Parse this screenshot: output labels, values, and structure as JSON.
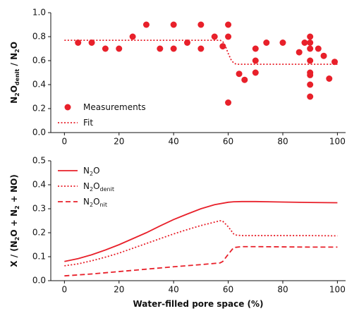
{
  "chart_data": [
    {
      "type": "scatter",
      "ylabel": [
        {
          "text": "N"
        },
        {
          "text": "2",
          "sub": true
        },
        {
          "text": "O"
        },
        {
          "text": "denit",
          "sub": true
        },
        {
          "text": " / N"
        },
        {
          "text": "2",
          "sub": true
        },
        {
          "text": "O"
        }
      ],
      "xlim": [
        -5,
        103
      ],
      "xticks": [
        0,
        20,
        40,
        60,
        80,
        100
      ],
      "ylim": [
        0,
        1
      ],
      "yticks": [
        {
          "value": 0,
          "label": "0.0"
        },
        0.2,
        0.4,
        0.6,
        0.8,
        {
          "value": 1,
          "label": "1.0"
        }
      ],
      "legend": "lower left",
      "series": [
        {
          "name": [
            {
              "text": "Measurements"
            }
          ],
          "color": "#e8202a",
          "style": "dot",
          "x": [
            5,
            10,
            15,
            20,
            25,
            30,
            35,
            40,
            40,
            45,
            50,
            50,
            55,
            58,
            60,
            60,
            60,
            64,
            66,
            70,
            70,
            70,
            74,
            80,
            86,
            88,
            90,
            90,
            90,
            90,
            90,
            90,
            90,
            90,
            93,
            95,
            97,
            99
          ],
          "values": [
            0.75,
            0.75,
            0.7,
            0.7,
            0.8,
            0.9,
            0.7,
            0.9,
            0.7,
            0.75,
            0.9,
            0.7,
            0.8,
            0.72,
            0.9,
            0.8,
            0.25,
            0.49,
            0.44,
            0.7,
            0.6,
            0.5,
            0.75,
            0.75,
            0.67,
            0.75,
            0.8,
            0.75,
            0.7,
            0.6,
            0.5,
            0.48,
            0.4,
            0.3,
            0.7,
            0.64,
            0.45,
            0.59
          ]
        },
        {
          "name": [
            {
              "text": "Fit"
            }
          ],
          "color": "#e8202a",
          "style": "dotted",
          "x": [
            0,
            57,
            58,
            59,
            60,
            61,
            62,
            63,
            100
          ],
          "values": [
            0.77,
            0.77,
            0.76,
            0.72,
            0.66,
            0.61,
            0.58,
            0.57,
            0.57
          ]
        }
      ]
    },
    {
      "type": "line",
      "ylabel": [
        {
          "text": "X / (N"
        },
        {
          "text": "2",
          "sub": true
        },
        {
          "text": "O + N"
        },
        {
          "text": "2",
          "sub": true
        },
        {
          "text": " + NO)"
        }
      ],
      "xlabel": [
        {
          "text": "Water-filled pore space (%)"
        }
      ],
      "xlim": [
        -5,
        103
      ],
      "xticks": [
        0,
        20,
        40,
        60,
        80,
        100
      ],
      "ylim": [
        0,
        0.5
      ],
      "yticks": [
        {
          "value": 0,
          "label": "0.0"
        },
        0.1,
        0.2,
        0.3,
        0.4,
        0.5
      ],
      "legend": "upper left",
      "series": [
        {
          "name": [
            {
              "text": "N"
            },
            {
              "text": "2",
              "sub": true
            },
            {
              "text": "O"
            }
          ],
          "color": "#e8202a",
          "style": "solid",
          "x": [
            0,
            5,
            10,
            15,
            20,
            25,
            30,
            35,
            40,
            45,
            50,
            55,
            60,
            62,
            65,
            70,
            80,
            90,
            100
          ],
          "values": [
            0.08,
            0.092,
            0.108,
            0.128,
            0.15,
            0.175,
            0.2,
            0.228,
            0.255,
            0.278,
            0.3,
            0.317,
            0.327,
            0.329,
            0.33,
            0.33,
            0.328,
            0.326,
            0.325
          ]
        },
        {
          "name": [
            {
              "text": "N"
            },
            {
              "text": "2",
              "sub": true
            },
            {
              "text": "O"
            },
            {
              "text": "denit",
              "sub": true
            }
          ],
          "color": "#e8202a",
          "style": "dotted",
          "x": [
            0,
            5,
            10,
            15,
            20,
            25,
            30,
            35,
            40,
            45,
            50,
            55,
            57,
            58,
            60,
            62,
            63,
            65,
            70,
            80,
            90,
            100
          ],
          "values": [
            0.062,
            0.07,
            0.083,
            0.098,
            0.115,
            0.135,
            0.155,
            0.175,
            0.195,
            0.213,
            0.23,
            0.244,
            0.25,
            0.248,
            0.225,
            0.195,
            0.19,
            0.188,
            0.188,
            0.188,
            0.188,
            0.187
          ]
        },
        {
          "name": [
            {
              "text": "N"
            },
            {
              "text": "2",
              "sub": true
            },
            {
              "text": "O"
            },
            {
              "text": "nit",
              "sub": true
            }
          ],
          "color": "#e8202a",
          "style": "dashed",
          "x": [
            0,
            10,
            20,
            30,
            40,
            50,
            55,
            57,
            58,
            60,
            62,
            65,
            70,
            80,
            90,
            100
          ],
          "values": [
            0.02,
            0.028,
            0.038,
            0.048,
            0.058,
            0.067,
            0.072,
            0.074,
            0.08,
            0.11,
            0.138,
            0.142,
            0.142,
            0.141,
            0.14,
            0.14
          ]
        }
      ]
    }
  ]
}
